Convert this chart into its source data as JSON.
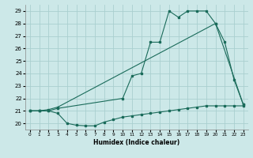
{
  "xlabel": "Humidex (Indice chaleur)",
  "bg_color": "#cce8e8",
  "line_color": "#1a6b5a",
  "grid_color": "#aacfcf",
  "xlim": [
    -0.5,
    23.5
  ],
  "ylim": [
    19.5,
    29.5
  ],
  "xticks": [
    0,
    1,
    2,
    3,
    4,
    5,
    6,
    7,
    8,
    9,
    10,
    11,
    12,
    13,
    14,
    15,
    16,
    17,
    18,
    19,
    20,
    21,
    22,
    23
  ],
  "yticks": [
    20,
    21,
    22,
    23,
    24,
    25,
    26,
    27,
    28,
    29
  ],
  "line1_x": [
    0,
    1,
    2,
    3,
    4,
    5,
    6,
    7,
    8,
    9,
    10,
    11,
    12,
    13,
    14,
    15,
    16,
    17,
    18,
    19,
    20,
    21,
    22,
    23
  ],
  "line1_y": [
    21.0,
    21.0,
    21.0,
    20.8,
    20.0,
    19.85,
    19.8,
    19.8,
    20.1,
    20.3,
    20.5,
    20.6,
    20.7,
    20.8,
    20.9,
    21.0,
    21.1,
    21.2,
    21.3,
    21.4,
    21.4,
    21.4,
    21.4,
    21.4
  ],
  "line2_x": [
    0,
    1,
    2,
    3,
    10,
    11,
    12,
    13,
    14,
    15,
    16,
    17,
    18,
    19,
    20,
    21,
    22,
    23
  ],
  "line2_y": [
    21.0,
    21.0,
    21.0,
    21.2,
    22.0,
    23.8,
    24.0,
    26.5,
    26.5,
    29.0,
    28.5,
    29.0,
    29.0,
    29.0,
    28.0,
    26.5,
    23.5,
    21.5
  ],
  "line3_x": [
    0,
    1,
    2,
    3,
    20,
    23
  ],
  "line3_y": [
    21.0,
    21.0,
    21.1,
    21.3,
    28.0,
    21.5
  ]
}
